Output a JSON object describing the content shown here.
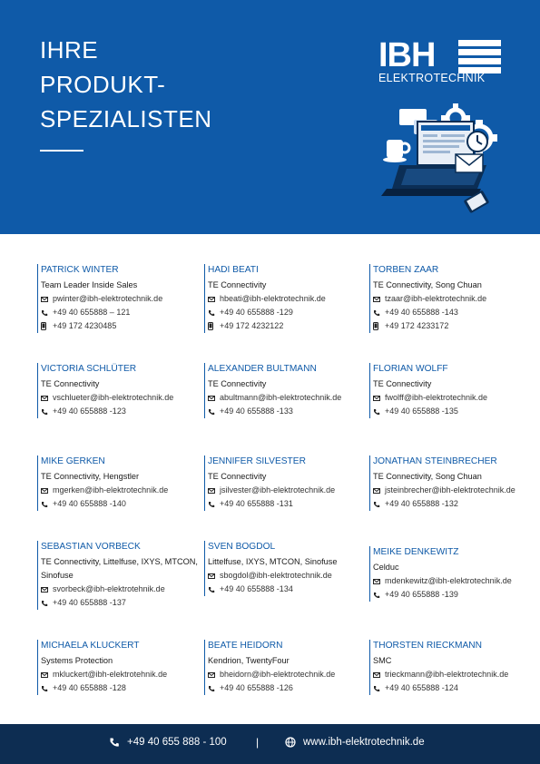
{
  "hero": {
    "title_lines": [
      "IHRE",
      "PRODUKT-",
      "SPEZIALISTEN"
    ],
    "logo_letters": "IBH",
    "logo_sub": "ELEKTROTECHNIK"
  },
  "contacts": [
    {
      "name": "PATRICK WINTER",
      "company": "Team Leader Inside Sales",
      "email": "pwinter@ibh-elektrotechnik.de",
      "phone": "+49 40 655888 – 121",
      "mobile": "+49 172 4230485"
    },
    {
      "name": "HADI BEATI",
      "company": "TE Connectivity",
      "email": "hbeati@ibh-elektrotechnik.de",
      "phone": "+49 40 655888 -129",
      "mobile": "+49 172 4232122"
    },
    {
      "name": "TORBEN ZAAR",
      "company": "TE Connectivity, Song Chuan",
      "email": "tzaar@ibh-elektrotechnik.de",
      "phone": "+49 40 655888 -143",
      "mobile": "+49 172 4233172"
    },
    {
      "name": "VICTORIA SCHLÜTER",
      "company": "TE Connectivity",
      "email": "vschlueter@ibh-elektrotechnik.de",
      "phone": "+49 40 655888 -123"
    },
    {
      "name": "ALEXANDER BULTMANN",
      "company": "TE Connectivity",
      "email": "abultmann@ibh-elektrotechnik.de",
      "phone": "+49 40 655888 -133"
    },
    {
      "name": "FLORIAN WOLFF",
      "company": "TE Connectivity",
      "email": "fwolff@ibh-elektrotechnik.de",
      "phone": "+49 40 655888 -135"
    },
    {
      "name": "MIKE GERKEN",
      "company": "TE Connectivity, Hengstler",
      "email": "mgerken@ibh-elektrotechnik.de",
      "phone": "+49 40 655888 -140"
    },
    {
      "name": "JENNIFER SILVESTER",
      "company": "TE Connectivity",
      "email": "jsilvester@ibh-elektrotechnik.de",
      "phone": "+49 40 655888 -131"
    },
    {
      "name": "JONATHAN STEINBRECHER",
      "company": "TE Connectivity, Song Chuan",
      "email": "jsteinbrecher@ibh-elektrotechnik.de",
      "phone": "+49 40 655888 -132"
    },
    {
      "name": "SEBASTIAN VORBECK",
      "company": "TE Connectivity, Littelfuse, IXYS, MTCON, Sinofuse",
      "email": "svorbeck@ibh-elektrotehnik.de",
      "phone": "+49 40 655888 -137"
    },
    {
      "name": "SVEN BOGDOL",
      "company": "Littelfuse, IXYS, MTCON, Sinofuse",
      "email": "sbogdol@ibh-elektrotechnik.de",
      "phone": "+49 40 655888 -134"
    },
    {
      "name": "MEIKE DENKEWITZ",
      "company": "Celduc",
      "email": "mdenkewitz@ibh-elektrotechnik.de",
      "phone": "+49 40 655888 -139"
    },
    {
      "name": "MICHAELA KLUCKERT",
      "company": "Systems Protection",
      "email": "mkluckert@ibh-elektrotehnik.de",
      "phone": "+49 40 655888 -128"
    },
    {
      "name": "BEATE HEIDORN",
      "company": "Kendrion, TwentyFour",
      "email": "bheidorn@ibh-elektrotechnik.de",
      "phone": "+49 40 655888 -126"
    },
    {
      "name": "THORSTEN RIECKMANN",
      "company": "SMC",
      "email": "trieckmann@ibh-elektrotechnik.de",
      "phone": "+49 40 655888 -124"
    }
  ],
  "footer": {
    "phone": "+49 40 655 888 - 100",
    "separator": "|",
    "website": "www.ibh-elektrotechnik.de"
  },
  "colors": {
    "brand_blue": "#0f5aa8",
    "footer_navy": "#0d2d52"
  },
  "icons": {
    "email": "envelope-icon",
    "phone": "phone-icon",
    "mobile": "mobile-phone-icon",
    "web": "globe-icon"
  }
}
